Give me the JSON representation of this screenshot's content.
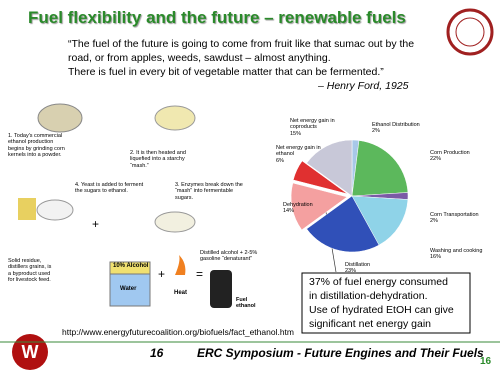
{
  "header": {
    "title": "Fuel flexibility and the future – renewable fuels"
  },
  "quote": {
    "lines": [
      "“The fuel of the future is going to come from fruit like that sumac out by the",
      "road, or from apples, weeds, sawdust – almost anything.",
      "There is fuel in every bit of vegetable matter that can be fermented.”"
    ],
    "attribution": "– Henry Ford, 1925"
  },
  "diagram": {
    "steps": [
      "1. Today's commercial ethanol production begins by grinding corn kernels into a powder.",
      "2. It is then heated and liquefied into a starchy “mash.”",
      "4. Yeast is added to ferment the sugars to ethanol.",
      "3. Enzymes break down the “mash” into fermentable sugars.",
      "Solid residue, distillers grains, is a byproduct used for livestock feed.",
      "Distilled alcohol + 2-5% gasoline “denaturant”"
    ],
    "tank_top": "10% Alcohol",
    "tank_bottom": "Water",
    "heat": "Heat",
    "fuel": "Fuel ethanol",
    "plus": "+",
    "equals": "="
  },
  "chart_data": {
    "type": "pie",
    "categories": [
      "Ethanol Distribution",
      "Corn Production",
      "Corn Transportation",
      "Washing and cooking",
      "Distillation",
      "Dehydration",
      "Net energy gain in ethanol",
      "Net energy gain in coproducts"
    ],
    "values": [
      2,
      22,
      2,
      16,
      23,
      14,
      6,
      15
    ],
    "value_labels": [
      "2%",
      "22%",
      "2%",
      "16%",
      "23%",
      "14%",
      "6%",
      "15%"
    ],
    "colors": [
      "#a8c8e8",
      "#5cb85c",
      "#7b5aa6",
      "#8fd3e8",
      "#3050b8",
      "#f4a0a0",
      "#e03030",
      "#c8c8d8"
    ]
  },
  "note": {
    "lines": [
      "37% of fuel energy consumed",
      "in distillation-dehydration.",
      "Use of hydrated EtOH can give",
      "significant net energy gain"
    ]
  },
  "footer": {
    "url": "http://www.energyfuturecoalition.org/biofuels/fact_ethanol.htm",
    "page": "16",
    "event": "ERC Symposium - Future Engines and Their Fuels",
    "slide_number": "16"
  }
}
